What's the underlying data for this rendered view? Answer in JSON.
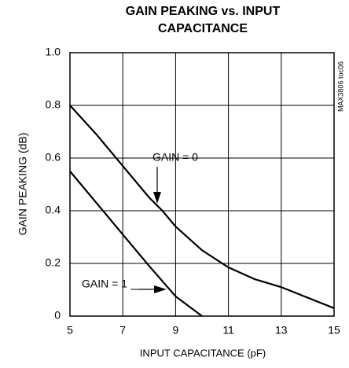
{
  "chart_data": {
    "type": "line",
    "title": "GAIN PEAKING vs. INPUT CAPACITANCE",
    "x_label": "INPUT CAPACITANCE (pF)",
    "y_label": "GAIN PEAKING (dB)",
    "side_note": "MAX3806 toc06",
    "xlim": [
      5,
      15
    ],
    "xticks": [
      5,
      7,
      9,
      11,
      13,
      15
    ],
    "ylim": [
      0,
      1
    ],
    "yticks": [
      0,
      0.2,
      0.4,
      0.6,
      0.8,
      {
        "value": 1,
        "label": "1.0"
      }
    ],
    "grid": true,
    "series": [
      {
        "name": "GAIN = 0",
        "color": "#000000",
        "x": [
          5,
          6,
          7,
          8,
          8.5,
          9,
          10,
          11,
          12,
          13,
          14,
          15
        ],
        "values": [
          0.8,
          0.69,
          0.57,
          0.45,
          0.4,
          0.34,
          0.25,
          0.185,
          0.14,
          0.11,
          0.07,
          0.03
        ]
      },
      {
        "name": "GAIN = 1",
        "color": "#000000",
        "x": [
          5,
          6,
          7,
          8,
          9,
          10
        ],
        "values": [
          0.55,
          0.43,
          0.31,
          0.19,
          0.075,
          0
        ]
      }
    ]
  }
}
